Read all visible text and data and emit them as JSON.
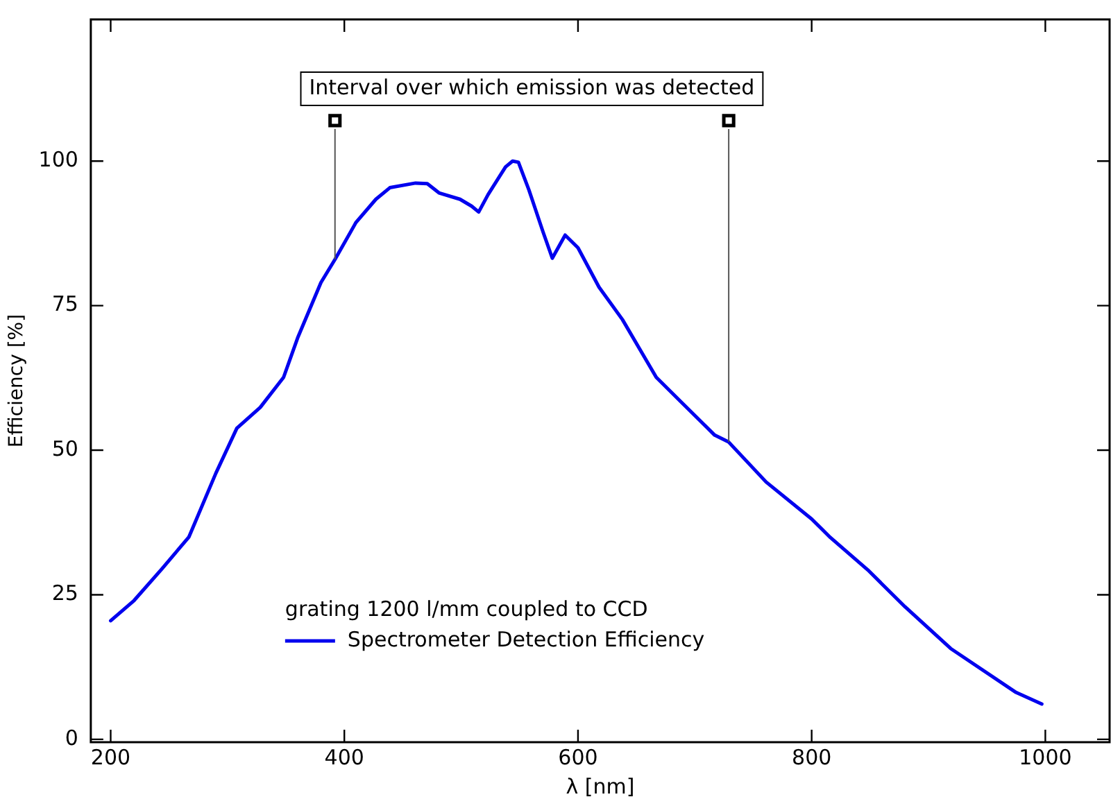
{
  "chart_data": {
    "type": "line",
    "xlabel": "λ [nm]",
    "ylabel": "Efficiency [%]",
    "xlim": [
      183,
      1055
    ],
    "ylim": [
      -0.5,
      124.5
    ],
    "xticks": [
      200,
      400,
      600,
      800,
      1000
    ],
    "yticks": [
      0,
      25,
      50,
      75,
      100
    ],
    "grid": false,
    "legend": "bottom left",
    "marker": "none",
    "line_style": "solid",
    "annotations": [
      "Interval over which emission was detected",
      "grating 1200 l/mm coupled to CCD"
    ],
    "ref_lines": [
      {
        "axis": "x",
        "value": 392
      },
      {
        "axis": "x",
        "value": 729
      }
    ],
    "series": [
      {
        "type": "scatter",
        "color": "#000000",
        "marker": "square",
        "x": [
          392,
          729
        ],
        "values": [
          107,
          107
        ]
      },
      {
        "name": "Spectrometer Detection Efficiency",
        "color": "#0000ee",
        "x": [
          200,
          220,
          244,
          267,
          290,
          308,
          328,
          348,
          360,
          380,
          392,
          410,
          427,
          439,
          461,
          471,
          481,
          499,
          509,
          515,
          523,
          538,
          544,
          549,
          558,
          570,
          578,
          589,
          600,
          618,
          638,
          667,
          689,
          717,
          729,
          761,
          800,
          816,
          848,
          880,
          919,
          975,
          997
        ],
        "values": [
          20.5,
          24,
          29.5,
          35,
          46,
          53.8,
          57.4,
          62.6,
          69.4,
          79,
          83,
          89.4,
          93.4,
          95.4,
          96.2,
          96.1,
          94.5,
          93.4,
          92.2,
          91.2,
          94.2,
          99,
          100,
          99.8,
          95,
          87.8,
          83.2,
          87.2,
          85,
          78.2,
          72.6,
          62.6,
          58.2,
          52.6,
          51.4,
          44.5,
          38.1,
          34.9,
          29.3,
          22.9,
          15.7,
          8.1,
          6.1
        ]
      }
    ]
  }
}
